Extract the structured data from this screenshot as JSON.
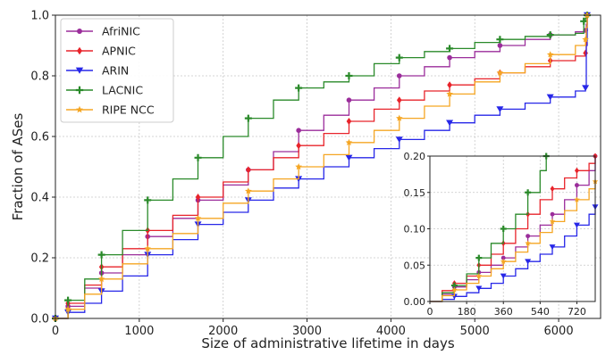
{
  "chart_data": {
    "type": "line",
    "step": true,
    "xlabel": "Size of administrative lifetime in days",
    "ylabel": "Fraction of ASes",
    "xlim": [
      0,
      6500
    ],
    "ylim": [
      0,
      1.0
    ],
    "x_ticks": [
      0,
      1000,
      2000,
      3000,
      4000,
      5000,
      6000
    ],
    "y_ticks": [
      0.0,
      0.2,
      0.4,
      0.6,
      0.8,
      1.0
    ],
    "x_tick_labels": [
      "0",
      "1000",
      "2000",
      "3000",
      "4000",
      "5000",
      "6000"
    ],
    "y_tick_labels": [
      "0.0",
      "0.2",
      "0.4",
      "0.6",
      "0.8",
      "1.0"
    ],
    "grid": true,
    "legend_position": "top-left",
    "series": [
      {
        "name": "AfriNIC",
        "color": "#9b2d9b",
        "marker": "circle",
        "x": [
          0,
          150,
          350,
          550,
          800,
          1100,
          1400,
          1700,
          2000,
          2300,
          2600,
          2900,
          3200,
          3500,
          3800,
          4100,
          4400,
          4700,
          5000,
          5300,
          5600,
          5900,
          6200,
          6320,
          6330,
          6340
        ],
        "y": [
          0,
          0.04,
          0.1,
          0.15,
          0.21,
          0.27,
          0.33,
          0.39,
          0.44,
          0.49,
          0.55,
          0.62,
          0.67,
          0.72,
          0.76,
          0.8,
          0.83,
          0.86,
          0.88,
          0.9,
          0.92,
          0.935,
          0.945,
          0.95,
          0.97,
          1.0
        ]
      },
      {
        "name": "APNIC",
        "color": "#e8242b",
        "marker": "diamond",
        "x": [
          0,
          150,
          350,
          550,
          800,
          1100,
          1400,
          1700,
          2000,
          2300,
          2600,
          2900,
          3200,
          3500,
          3800,
          4100,
          4400,
          4700,
          5000,
          5300,
          5600,
          5900,
          6200,
          6320,
          6330,
          6340
        ],
        "y": [
          0,
          0.05,
          0.11,
          0.17,
          0.23,
          0.29,
          0.34,
          0.4,
          0.45,
          0.49,
          0.53,
          0.57,
          0.61,
          0.65,
          0.69,
          0.72,
          0.75,
          0.77,
          0.79,
          0.81,
          0.83,
          0.85,
          0.865,
          0.875,
          0.95,
          1.0
        ]
      },
      {
        "name": "ARIN",
        "color": "#2727e8",
        "marker": "triangle-down",
        "x": [
          0,
          150,
          350,
          550,
          800,
          1100,
          1400,
          1700,
          2000,
          2300,
          2600,
          2900,
          3200,
          3500,
          3800,
          4100,
          4400,
          4700,
          5000,
          5300,
          5600,
          5900,
          6200,
          6320,
          6330,
          6340
        ],
        "y": [
          0,
          0.02,
          0.05,
          0.09,
          0.14,
          0.21,
          0.26,
          0.31,
          0.35,
          0.39,
          0.43,
          0.46,
          0.5,
          0.53,
          0.56,
          0.59,
          0.62,
          0.645,
          0.67,
          0.69,
          0.71,
          0.73,
          0.75,
          0.76,
          0.9,
          1.0
        ]
      },
      {
        "name": "LACNIC",
        "color": "#2a8a2a",
        "marker": "plus",
        "x": [
          0,
          150,
          350,
          550,
          800,
          1100,
          1400,
          1700,
          2000,
          2300,
          2600,
          2900,
          3200,
          3500,
          3800,
          4100,
          4400,
          4700,
          5000,
          5300,
          5600,
          5900,
          6200,
          6300,
          6320,
          6340
        ],
        "y": [
          0,
          0.06,
          0.13,
          0.21,
          0.29,
          0.39,
          0.46,
          0.53,
          0.6,
          0.66,
          0.72,
          0.76,
          0.78,
          0.8,
          0.84,
          0.86,
          0.88,
          0.89,
          0.91,
          0.92,
          0.93,
          0.935,
          0.94,
          0.98,
          0.99,
          1.0
        ]
      },
      {
        "name": "RIPE NCC",
        "color": "#f5a623",
        "marker": "star",
        "x": [
          0,
          150,
          350,
          550,
          800,
          1100,
          1400,
          1700,
          2000,
          2300,
          2600,
          2900,
          3200,
          3500,
          3800,
          4100,
          4400,
          4700,
          5000,
          5300,
          5600,
          5900,
          6200,
          6320,
          6330,
          6340
        ],
        "y": [
          0,
          0.03,
          0.08,
          0.13,
          0.18,
          0.23,
          0.28,
          0.33,
          0.38,
          0.42,
          0.46,
          0.5,
          0.54,
          0.58,
          0.62,
          0.66,
          0.7,
          0.74,
          0.78,
          0.81,
          0.84,
          0.87,
          0.9,
          0.92,
          0.96,
          1.0
        ]
      }
    ],
    "inset": {
      "xlim": [
        0,
        810
      ],
      "ylim": [
        0,
        0.2
      ],
      "x_ticks": [
        0,
        180,
        360,
        540,
        720
      ],
      "y_ticks": [
        0.0,
        0.05,
        0.1,
        0.15,
        0.2
      ],
      "x_tick_labels": [
        "0",
        "180",
        "360",
        "540",
        "720"
      ],
      "y_tick_labels": [
        "0.00",
        "0.05",
        "0.10",
        "0.15",
        "0.20"
      ],
      "series": [
        {
          "name": "AfriNIC",
          "x": [
            0,
            60,
            120,
            180,
            240,
            300,
            360,
            420,
            480,
            540,
            600,
            660,
            720,
            780,
            810
          ],
          "y": [
            0,
            0.01,
            0.02,
            0.03,
            0.04,
            0.05,
            0.06,
            0.075,
            0.09,
            0.105,
            0.12,
            0.14,
            0.16,
            0.18,
            0.2
          ]
        },
        {
          "name": "APNIC",
          "x": [
            0,
            60,
            120,
            180,
            240,
            300,
            360,
            420,
            480,
            540,
            600,
            660,
            720,
            780,
            810
          ],
          "y": [
            0,
            0.015,
            0.025,
            0.035,
            0.05,
            0.065,
            0.08,
            0.1,
            0.12,
            0.14,
            0.155,
            0.17,
            0.18,
            0.19,
            0.2
          ]
        },
        {
          "name": "ARIN",
          "x": [
            0,
            60,
            120,
            180,
            240,
            300,
            360,
            420,
            480,
            540,
            600,
            660,
            720,
            780,
            810
          ],
          "y": [
            0,
            0.003,
            0.007,
            0.012,
            0.018,
            0.025,
            0.035,
            0.045,
            0.055,
            0.065,
            0.075,
            0.09,
            0.105,
            0.12,
            0.13
          ]
        },
        {
          "name": "LACNIC",
          "x": [
            0,
            60,
            120,
            180,
            240,
            300,
            360,
            420,
            480,
            540,
            570
          ],
          "y": [
            0,
            0.012,
            0.022,
            0.038,
            0.06,
            0.08,
            0.1,
            0.12,
            0.15,
            0.18,
            0.2
          ]
        },
        {
          "name": "RIPE NCC",
          "x": [
            0,
            60,
            120,
            180,
            240,
            300,
            360,
            420,
            480,
            540,
            600,
            660,
            720,
            780,
            810
          ],
          "y": [
            0,
            0.008,
            0.016,
            0.025,
            0.035,
            0.045,
            0.055,
            0.068,
            0.08,
            0.095,
            0.11,
            0.125,
            0.14,
            0.155,
            0.165
          ]
        }
      ]
    }
  }
}
